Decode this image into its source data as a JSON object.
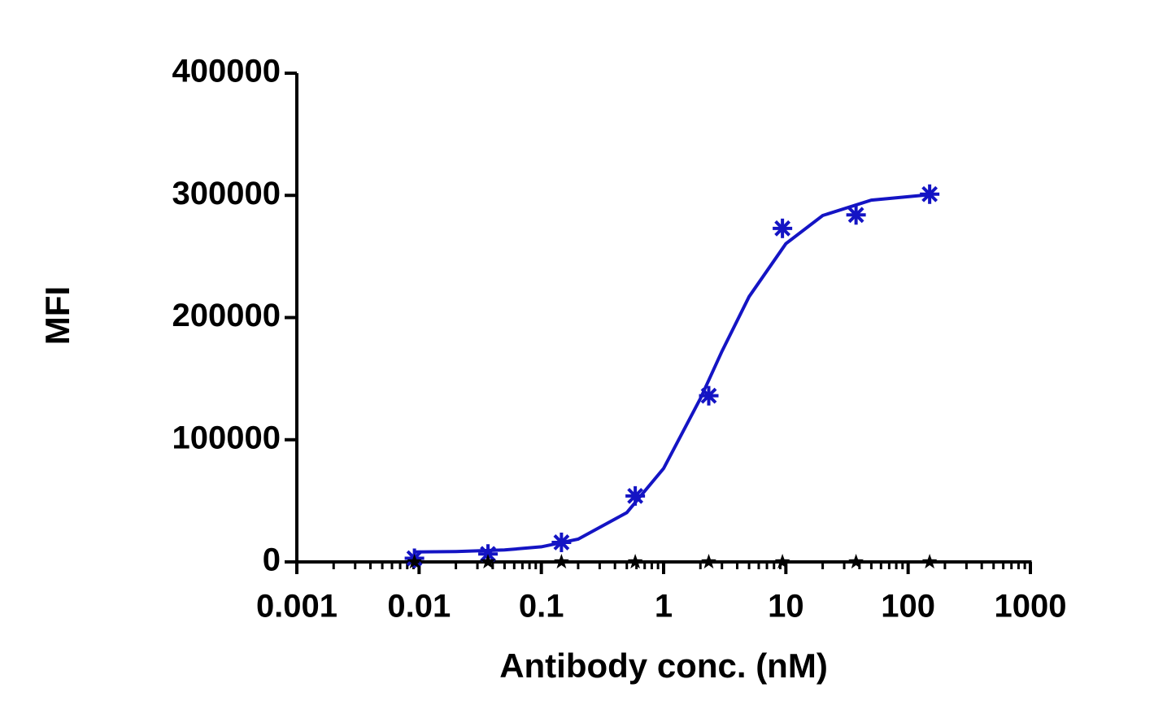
{
  "chart_data": {
    "type": "scatter",
    "x_label": "Antibody conc. (nM)",
    "y_label": "MFI",
    "xlog": true,
    "xlim": [
      0.001,
      1000
    ],
    "xticks": [
      0.001,
      0.01,
      0.1,
      1,
      10,
      100,
      1000
    ],
    "ylim": [
      0,
      400000
    ],
    "yticks": [
      0,
      100000,
      200000,
      300000,
      400000
    ],
    "series": [
      {
        "kind": "points",
        "marker": "asterisk",
        "color": "#1414c4",
        "x": [
          0.00916,
          0.0366,
          0.146,
          0.586,
          2.34,
          9.375,
          37.5,
          150
        ],
        "values": [
          3000,
          6500,
          16000,
          54000,
          136000,
          273000,
          284000,
          301000
        ]
      },
      {
        "kind": "line",
        "color": "#1414c4",
        "x": [
          0.00916,
          0.02,
          0.05,
          0.1,
          0.2,
          0.5,
          1,
          2,
          3,
          5,
          10,
          20,
          50,
          150
        ],
        "values": [
          8200,
          8550,
          9810,
          12410,
          18610,
          40300,
          76530,
          133850,
          172340,
          217100,
          260400,
          283500,
          296100,
          300570
        ]
      },
      {
        "kind": "points",
        "marker": "star",
        "color": "#000000",
        "dashed_line": true,
        "x": [
          0.00916,
          0.0366,
          0.146,
          0.586,
          2.34,
          9.375,
          37.5,
          150
        ],
        "values": [
          0,
          0,
          0,
          0,
          0,
          0,
          0,
          0
        ]
      }
    ]
  }
}
